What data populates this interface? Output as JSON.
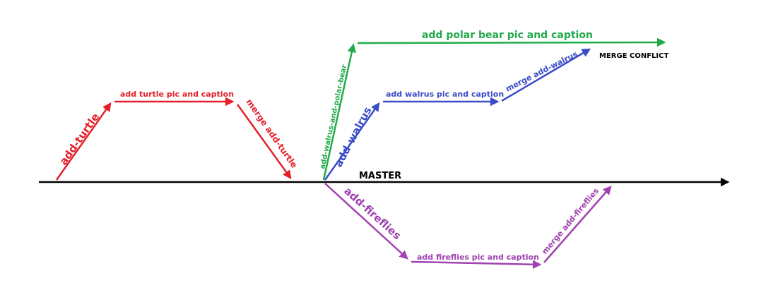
{
  "colors": {
    "master": "#000000",
    "turtle": "#e3202a",
    "polar_bear": "#22aa4a",
    "walrus": "#3b4cc8",
    "fireflies": "#a042b0"
  },
  "master": {
    "label": "MASTER"
  },
  "turtle": {
    "branch": "add-turtle",
    "commit": "add turtle pic and caption",
    "merge": "merge add-turtle"
  },
  "polar_bear": {
    "branch": "add-walrus-and-polar-bear",
    "commit": "add polar bear pic and caption",
    "conflict": "MERGE CONFLICT"
  },
  "walrus": {
    "branch": "add-walrus",
    "commit": "add walrus pic and caption",
    "merge": "merge add-walrus"
  },
  "fireflies": {
    "branch": "add-fireflies",
    "commit": "add fireflies pic and caption",
    "merge": "merge add-fireflies"
  }
}
